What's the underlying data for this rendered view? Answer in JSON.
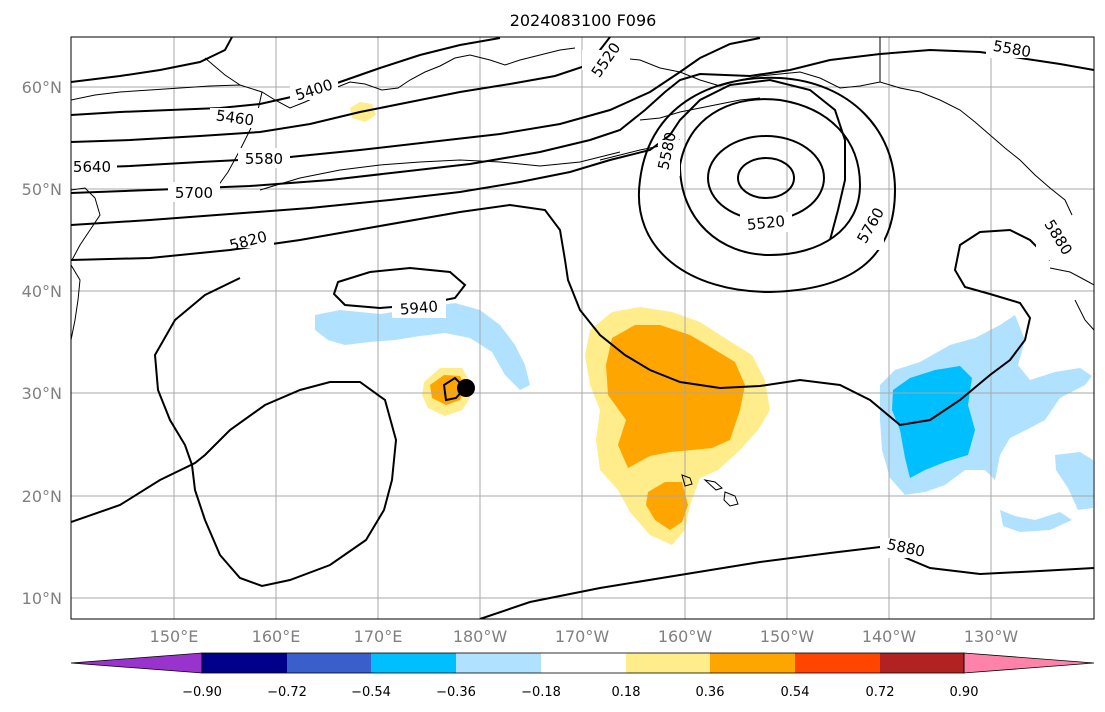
{
  "figure": {
    "title": "2024083100 F096",
    "latitude_labels": [
      "60°N",
      "50°N",
      "40°N",
      "30°N",
      "20°N",
      "10°N"
    ],
    "longitude_labels": [
      "150°E",
      "160°E",
      "170°E",
      "180°W",
      "170°W",
      "160°W",
      "150°W",
      "140°W",
      "130°W"
    ],
    "contour_labels": [
      "5400",
      "5460",
      "5520",
      "5580",
      "5580",
      "5580",
      "5640",
      "5700",
      "5820",
      "5940",
      "5520",
      "5760",
      "5880",
      "5880"
    ]
  },
  "colorbar": {
    "tick_labels": [
      "−0.90",
      "−0.72",
      "−0.54",
      "−0.36",
      "−0.18",
      "0.18",
      "0.36",
      "0.54",
      "0.72",
      "0.90"
    ],
    "colors": [
      "#9a32cd",
      "#00008b",
      "#3a5fcd",
      "#00bfff",
      "#b0e2ff",
      "#ffffff",
      "#ffec8b",
      "#ffa500",
      "#ff4500",
      "#b22222",
      "#ff82ab"
    ],
    "extend": "both"
  },
  "fill_colors": {
    "light_blue": "#b0e2ff",
    "blue": "#00bfff",
    "light_yellow": "#ffec8b",
    "orange": "#ffa500"
  },
  "map": {
    "lat_range": [
      8,
      65
    ],
    "lon_range": [
      140,
      240
    ],
    "gridlines": true,
    "marker": "black dot near 30.5°N 178°W"
  }
}
